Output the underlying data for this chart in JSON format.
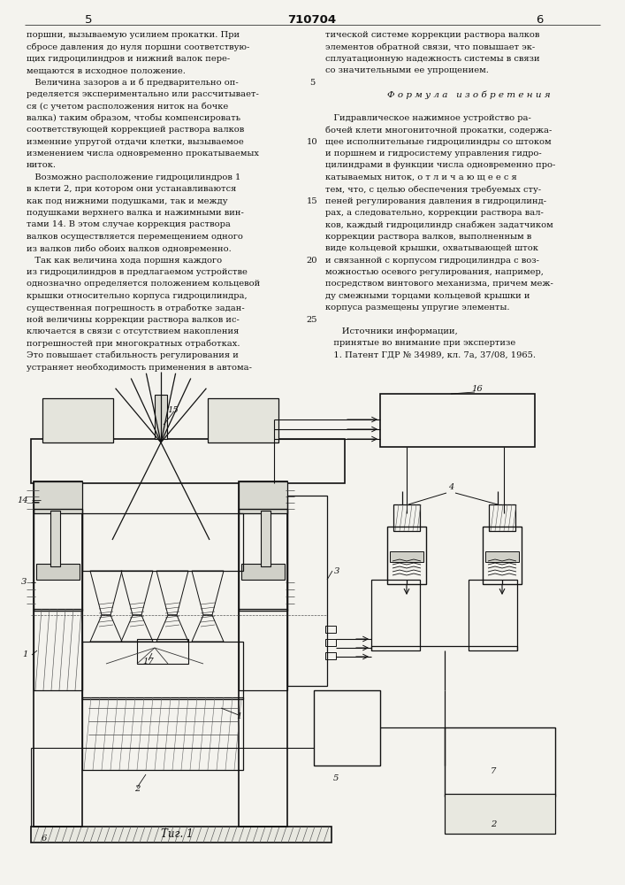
{
  "patent_number": "710704",
  "page_left": "5",
  "page_right": "6",
  "bg_color": "#f4f3ee",
  "text_color": "#111111",
  "fig_caption": "Τиг. 1",
  "left_col": [
    "поршни, вызываемую усилием прокатки. При",
    "сбросе давления до нуля поршни соответствую-",
    "щих гидроцилиндров и нижний валок пере-",
    "мещаются в исходное положение.",
    "   Величина зазоров a и б предварительно оп-",
    "ределяется экспериментально или рассчитывает-",
    "ся (с учетом расположения ниток на бочке",
    "валка) таким образом, чтобы компенсировать",
    "соответствующей коррекцией раствора валков",
    "изменние упругой отдачи клетки, вызываемое",
    "изменением числа одновременно прокатываемых",
    "ниток.",
    "   Возможно расположение гидроцилиндров 1",
    "в клети 2, при котором они устанавливаются",
    "как под нижними подушками, так и между",
    "подушками верхнего валка и нажимными вин-",
    "тами 14. В этом случае коррекция раствора",
    "валков осуществляется перемещением одного",
    "из валков либо обоих валков одновременно.",
    "   Так как величина хода поршня каждого",
    "из гидроцилиндров в предлагаемом устройстве",
    "однозначно определяется положением кольцевой",
    "крышки относительно корпуса гидроцилиндра,",
    "существенная погрешность в отработке задан-",
    "ной величины коррекции раствора валков ис-",
    "ключается в связи с отсутствием накопления",
    "погрешностей при многократных отработках.",
    "Это повышает стабильность регулирования и",
    "устраняет необходимость применения в автома-"
  ],
  "right_col": [
    "тической системе коррекции раствора валков",
    "элементов обратной связи, что повышает эк-",
    "сплуатационную надежность системы в связи",
    "со значительными ее упрощением.",
    "",
    "   Ф о р м у л а   и з о б р е т е н и я",
    "",
    "   Гидравлическое нажимное устройство ра-",
    "бочей клети многониточной прокатки, содержа-",
    "щее исполнительные гидроцилиндры со штоком",
    "и поршнем и гидросистему управления гидро-",
    "цилиндрами в функции числа одновременно про-",
    "катываемых ниток, о т л и ч а ю щ е е с я",
    "тем, что, с целью обеспечения требуемых сту-",
    "пеней регулирования давления в гидроцилинд-",
    "рах, а следовательно, коррекции раствора вал-",
    "ков, каждый гидроцилиндр снабжен задатчиком",
    "коррекции раствора валков, выполненным в",
    "виде кольцевой крышки, охватывающей шток",
    "и связанной с корпусом гидроцилиндра с воз-",
    "можностью осевого регулирования, например,",
    "посредством винтового механизма, причем меж-",
    "ду смежными торцами кольцевой крышки и",
    "корпуса размещены упругие элементы.",
    "",
    "      Источники информации,",
    "   принятые во внимание при экспертизе",
    "   1. Патент ГДР № 34989, кл. 7а, 37/08, 1965."
  ],
  "line_numbers": [
    [
      4,
      "5"
    ],
    [
      9,
      "10"
    ],
    [
      14,
      "15"
    ],
    [
      19,
      "20"
    ],
    [
      24,
      "25"
    ]
  ]
}
